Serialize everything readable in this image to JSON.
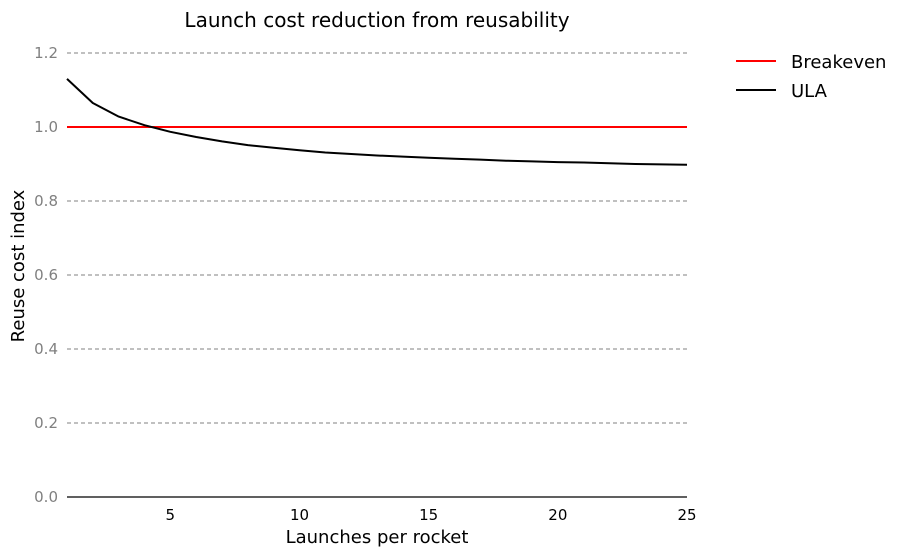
{
  "chart_data": {
    "type": "line",
    "title": "Launch cost reduction from reusability",
    "xlabel": "Launches per rocket",
    "ylabel": "Reuse cost index",
    "xlim": [
      1,
      25
    ],
    "ylim": [
      0,
      1.2
    ],
    "xticks": [
      5,
      10,
      15,
      20,
      25
    ],
    "yticks": [
      0.0,
      0.2,
      0.4,
      0.6,
      0.8,
      1.0,
      1.2
    ],
    "grid": "horizontal dashed",
    "legend_position": "outside top-right",
    "series": [
      {
        "name": "Breakeven",
        "color": "#ff0000",
        "x": [
          1,
          25
        ],
        "y": [
          1.0,
          1.0
        ]
      },
      {
        "name": "ULA",
        "color": "#000000",
        "x": [
          1,
          2,
          3,
          4,
          5,
          6,
          7,
          8,
          9,
          10,
          11,
          12,
          13,
          14,
          15,
          16,
          17,
          18,
          19,
          20,
          21,
          22,
          23,
          24,
          25
        ],
        "y": [
          1.13,
          1.065,
          1.028,
          1.005,
          0.987,
          0.973,
          0.961,
          0.951,
          0.944,
          0.937,
          0.931,
          0.927,
          0.923,
          0.92,
          0.917,
          0.914,
          0.912,
          0.909,
          0.907,
          0.905,
          0.904,
          0.902,
          0.9,
          0.899,
          0.898
        ]
      }
    ]
  }
}
